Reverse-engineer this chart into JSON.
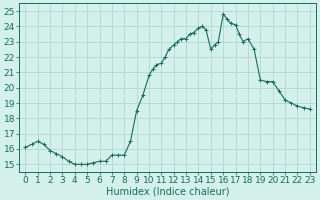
{
  "x": [
    0,
    0.5,
    1,
    1.5,
    2,
    2.5,
    3,
    3.5,
    4,
    4.5,
    5,
    5.5,
    6,
    6.5,
    7,
    7.5,
    8,
    8.5,
    9,
    9.5,
    10,
    10.3,
    10.6,
    11,
    11.3,
    11.6,
    12,
    12.3,
    12.6,
    13,
    13.3,
    13.6,
    14,
    14.3,
    14.6,
    15,
    15.3,
    15.6,
    16,
    16.3,
    16.6,
    17,
    17.3,
    17.6,
    18,
    18.5,
    19,
    19.5,
    20,
    20.5,
    21,
    21.5,
    22,
    22.5,
    23
  ],
  "y": [
    16.1,
    16.3,
    16.5,
    16.3,
    15.9,
    15.7,
    15.5,
    15.2,
    15.0,
    15.0,
    15.0,
    15.1,
    15.2,
    15.2,
    15.6,
    15.6,
    15.6,
    16.5,
    18.5,
    19.5,
    20.8,
    21.2,
    21.5,
    21.6,
    22.0,
    22.5,
    22.8,
    23.0,
    23.2,
    23.2,
    23.5,
    23.6,
    23.9,
    24.0,
    23.8,
    22.5,
    22.8,
    23.0,
    24.8,
    24.5,
    24.2,
    24.1,
    23.5,
    23.0,
    23.2,
    22.5,
    20.5,
    20.4,
    20.4,
    19.8,
    19.2,
    19.0,
    18.8,
    18.7,
    18.6
  ],
  "line_color": "#1a6b5a",
  "marker": "+",
  "marker_size": 3,
  "bg_color": "#d4f0eb",
  "grid_color": "#b0d8d0",
  "xlabel": "Humidex (Indice chaleur)",
  "xlim": [
    -0.5,
    23.5
  ],
  "ylim": [
    14.5,
    25.5
  ],
  "yticks": [
    15,
    16,
    17,
    18,
    19,
    20,
    21,
    22,
    23,
    24,
    25
  ],
  "xticks": [
    0,
    1,
    2,
    3,
    4,
    5,
    6,
    7,
    8,
    9,
    10,
    11,
    12,
    13,
    14,
    15,
    16,
    17,
    18,
    19,
    20,
    21,
    22,
    23
  ],
  "title_color": "#1a6b5a",
  "label_fontsize": 7,
  "tick_fontsize": 6.5
}
